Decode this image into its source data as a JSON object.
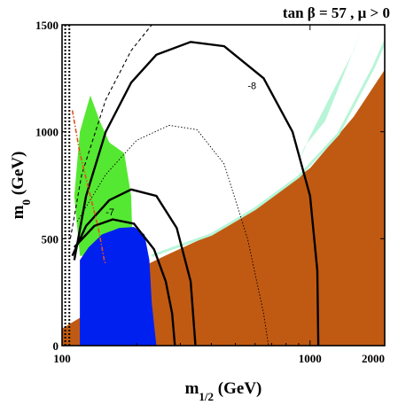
{
  "chart_data": {
    "type": "area",
    "title": "tan β = 57 ,  μ > 0",
    "xlabel": "m_{1/2} (GeV)",
    "ylabel": "m_0 (GeV)",
    "x_scale": "log",
    "xlim": [
      100,
      2000
    ],
    "ylim": [
      0,
      1500
    ],
    "x_ticks": [
      100,
      1000,
      2000
    ],
    "y_ticks": [
      0,
      500,
      1000,
      1500
    ],
    "grid": false,
    "colors": {
      "stau_lsp": "#c05a12",
      "b_to_s_gamma": "#0020f0",
      "g_minus_2": "#55e832",
      "relic_density": "#b8f5d8",
      "contour": "#000000",
      "higgs_limit": "#e05020"
    },
    "regions": [
      {
        "id": "stau_lsp",
        "boundary": [
          [
            100,
            80
          ],
          [
            118,
            130
          ],
          [
            145,
            240
          ],
          [
            180,
            330
          ],
          [
            260,
            420
          ],
          [
            400,
            520
          ],
          [
            600,
            640
          ],
          [
            1000,
            830
          ],
          [
            1500,
            1070
          ],
          [
            2000,
            1290
          ]
        ]
      },
      {
        "id": "b_to_s_gamma",
        "boundary": [
          [
            118,
            0
          ],
          [
            118,
            400
          ],
          [
            128,
            460
          ],
          [
            145,
            520
          ],
          [
            170,
            550
          ],
          [
            195,
            555
          ],
          [
            215,
            520
          ],
          [
            225,
            400
          ],
          [
            230,
            200
          ],
          [
            240,
            0
          ]
        ]
      },
      {
        "id": "g_minus_2",
        "boundary": [
          [
            112,
            700
          ],
          [
            118,
            1000
          ],
          [
            130,
            1170
          ],
          [
            142,
            1050
          ],
          [
            155,
            950
          ],
          [
            178,
            900
          ],
          [
            190,
            700
          ],
          [
            192,
            500
          ],
          [
            150,
            420
          ],
          [
            118,
            420
          ]
        ]
      },
      {
        "id": "relic_density",
        "strip": [
          [
            230,
            420
          ],
          [
            400,
            520
          ],
          [
            600,
            640
          ],
          [
            900,
            790
          ],
          [
            1300,
            990
          ],
          [
            1800,
            1300
          ],
          [
            2000,
            1420
          ]
        ],
        "islands": [
          [
            [
              880,
              830
            ],
            [
              1000,
              980
            ],
            [
              1200,
              1160
            ],
            [
              1500,
              1380
            ],
            [
              1600,
              1470
            ],
            [
              1450,
              1340
            ],
            [
              1150,
              1050
            ],
            [
              950,
              930
            ]
          ]
        ]
      }
    ],
    "contours": [
      {
        "label": "-8",
        "points": [
          [
            112,
            400
          ],
          [
            125,
            700
          ],
          [
            150,
            1000
          ],
          [
            190,
            1230
          ],
          [
            240,
            1360
          ],
          [
            330,
            1420
          ],
          [
            450,
            1400
          ],
          [
            650,
            1250
          ],
          [
            850,
            1000
          ],
          [
            1000,
            700
          ],
          [
            1070,
            350
          ],
          [
            1080,
            0
          ]
        ]
      },
      {
        "label": "-7",
        "points": [
          [
            112,
            460
          ],
          [
            135,
            560
          ],
          [
            160,
            590
          ],
          [
            195,
            570
          ],
          [
            235,
            450
          ],
          [
            262,
            300
          ],
          [
            278,
            150
          ],
          [
            285,
            0
          ]
        ]
      },
      {
        "label": "",
        "points": [
          [
            110,
            420
          ],
          [
            125,
            560
          ],
          [
            155,
            680
          ],
          [
            190,
            730
          ],
          [
            240,
            700
          ],
          [
            290,
            550
          ],
          [
            330,
            300
          ],
          [
            345,
            0
          ]
        ]
      },
      {
        "label": "",
        "style": "dotted",
        "points": [
          [
            115,
            580
          ],
          [
            150,
            800
          ],
          [
            200,
            960
          ],
          [
            270,
            1030
          ],
          [
            350,
            1010
          ],
          [
            450,
            850
          ],
          [
            560,
            500
          ],
          [
            650,
            150
          ],
          [
            680,
            0
          ]
        ]
      },
      {
        "label": "",
        "style": "dashed",
        "points": [
          [
            108,
            500
          ],
          [
            120,
            800
          ],
          [
            150,
            1150
          ],
          [
            190,
            1380
          ],
          [
            230,
            1500
          ]
        ]
      }
    ],
    "limit_lines": [
      {
        "id": "chargino_limit",
        "style": "dotted",
        "m_half": 103
      },
      {
        "id": "chargino_limit_2",
        "style": "dotted",
        "m_half": 107
      },
      {
        "id": "higgs_limit",
        "style": "dash-dot",
        "points": [
          [
            110,
            1100
          ],
          [
            118,
            900
          ],
          [
            130,
            700
          ],
          [
            140,
            550
          ],
          [
            148,
            400
          ],
          [
            150,
            380
          ]
        ]
      }
    ]
  }
}
